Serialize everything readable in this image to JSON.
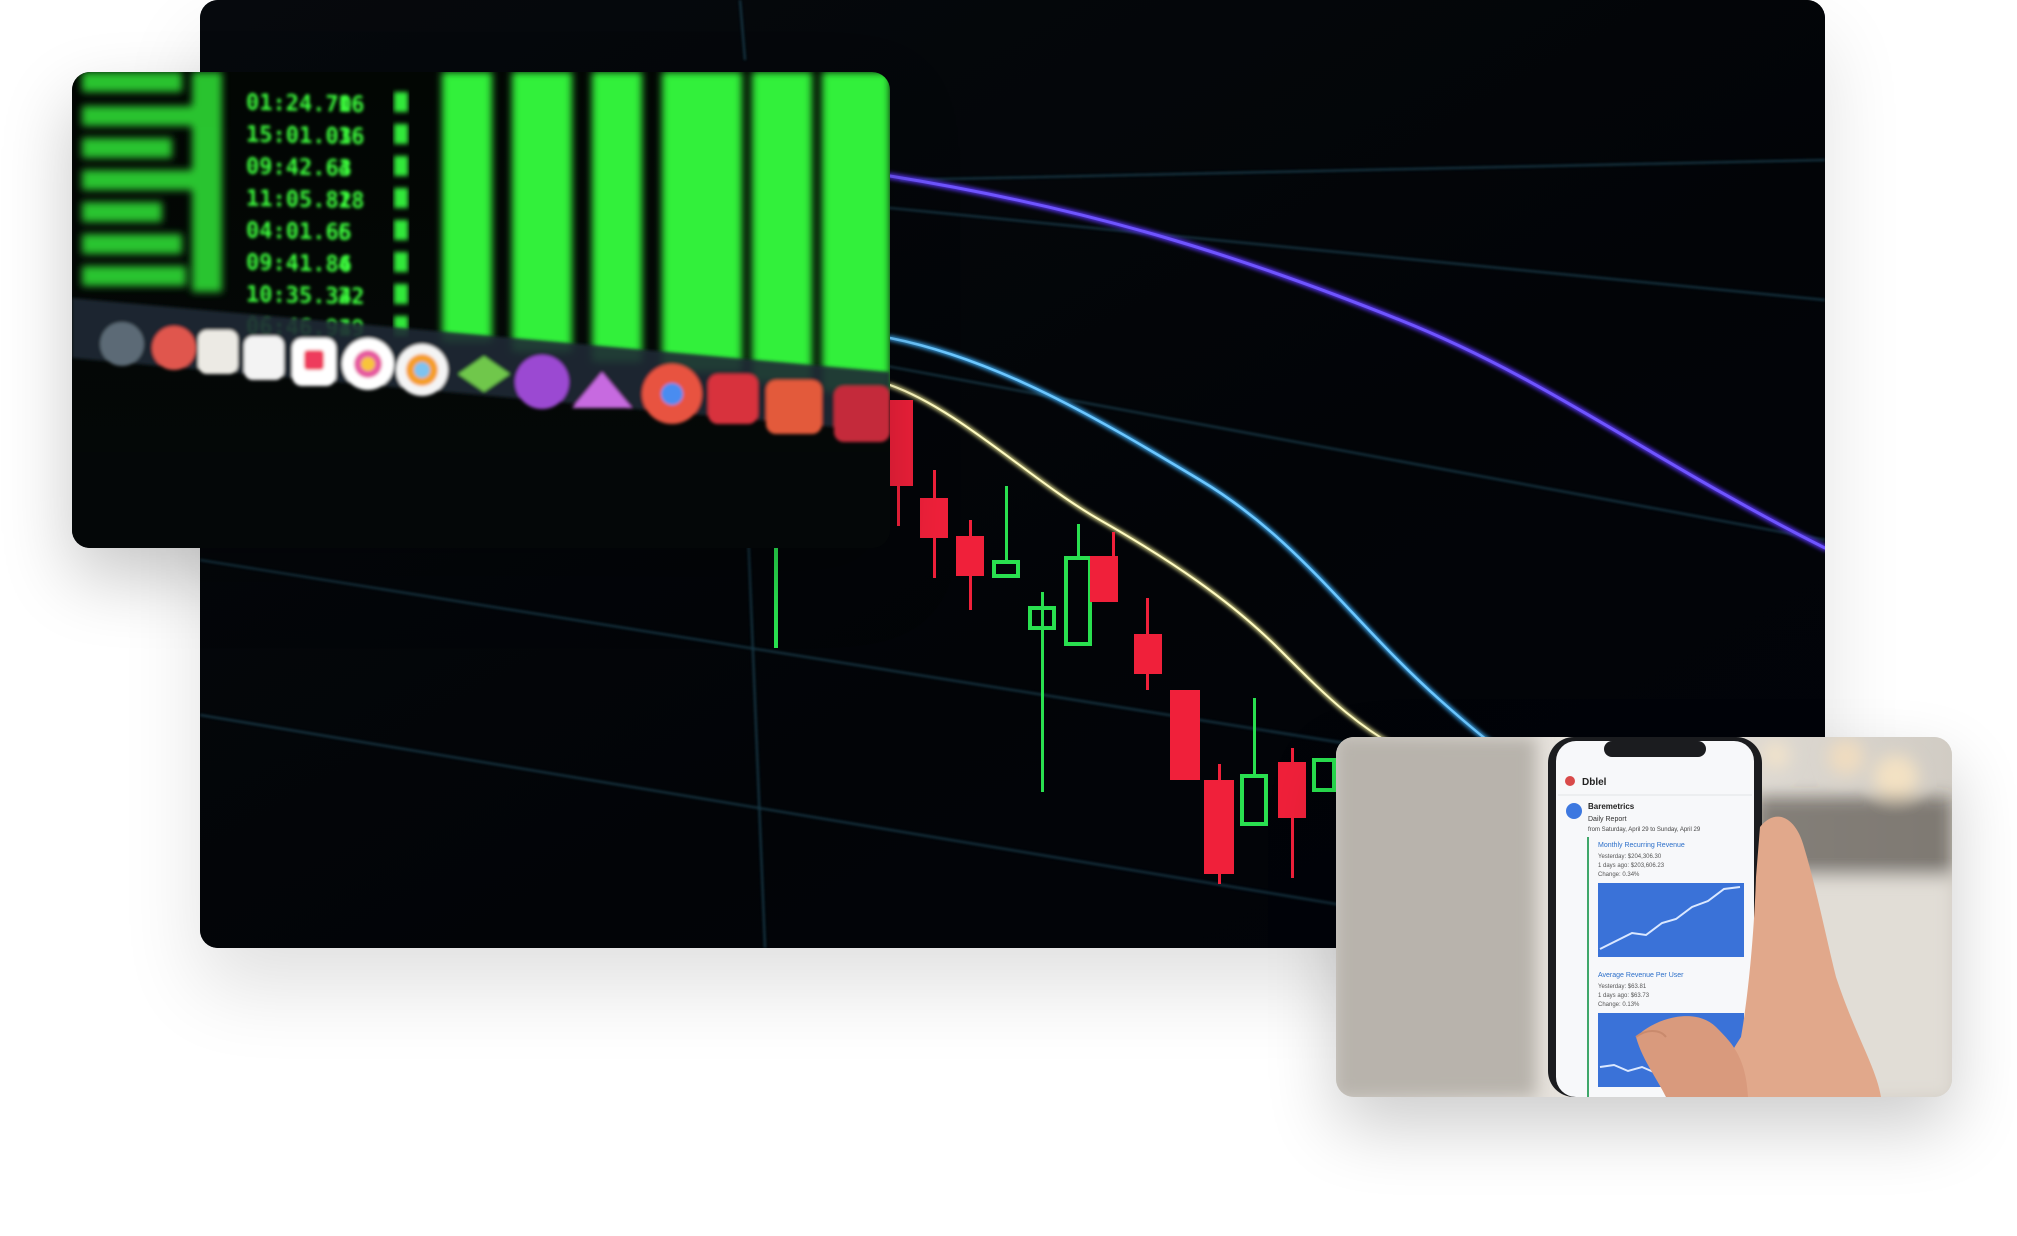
{
  "main_photo": {
    "subject": "candlestick-chart-screen"
  },
  "terminal_photo": {
    "rows": [
      {
        "time": "01:24.70",
        "n": "16"
      },
      {
        "time": "15:01.03",
        "n": "16"
      },
      {
        "time": "09:42.63",
        "n": "4"
      },
      {
        "time": "11:05.82",
        "n": "18"
      },
      {
        "time": "04:01.65",
        "n": "6"
      },
      {
        "time": "09:41.86",
        "n": "4"
      },
      {
        "time": "10:35.34",
        "n": "22"
      },
      {
        "time": "06:46.94",
        "n": "19"
      }
    ],
    "dock_icons": [
      "photos-icon",
      "notion-icon",
      "calendar-icon",
      "pocket-icon",
      "slack-icon",
      "photos-app-icon",
      "layers-icon",
      "podcast-icon",
      "prism-icon",
      "chrome-icon",
      "todoist-icon",
      "misc-app-icon"
    ]
  },
  "phone_photo": {
    "app_name": "Dblel",
    "sender": "Baremetrics",
    "report_title": "Daily Report",
    "report_range": "from Saturday, April 29 to Sunday, April 29",
    "card1_title": "Monthly Recurring Revenue",
    "card1_yesterday": "Yesterday: $204,306.30",
    "card1_ago": "1 days ago: $203,606.23",
    "card1_change": "Change: 0.34%",
    "card2_title": "Average Revenue Per User",
    "card2_yesterday": "Yesterday: $63.81",
    "card2_ago": "1 days ago: $63.73",
    "card2_change": "Change: 0.13%"
  },
  "colors": {
    "candle_up": "#29e04f",
    "candle_down": "#f0203a",
    "line_purple": "#5530e8",
    "line_blue": "#3aa7f0",
    "line_yellow": "#f3ef9a",
    "terminal_green": "#3cff3c"
  }
}
